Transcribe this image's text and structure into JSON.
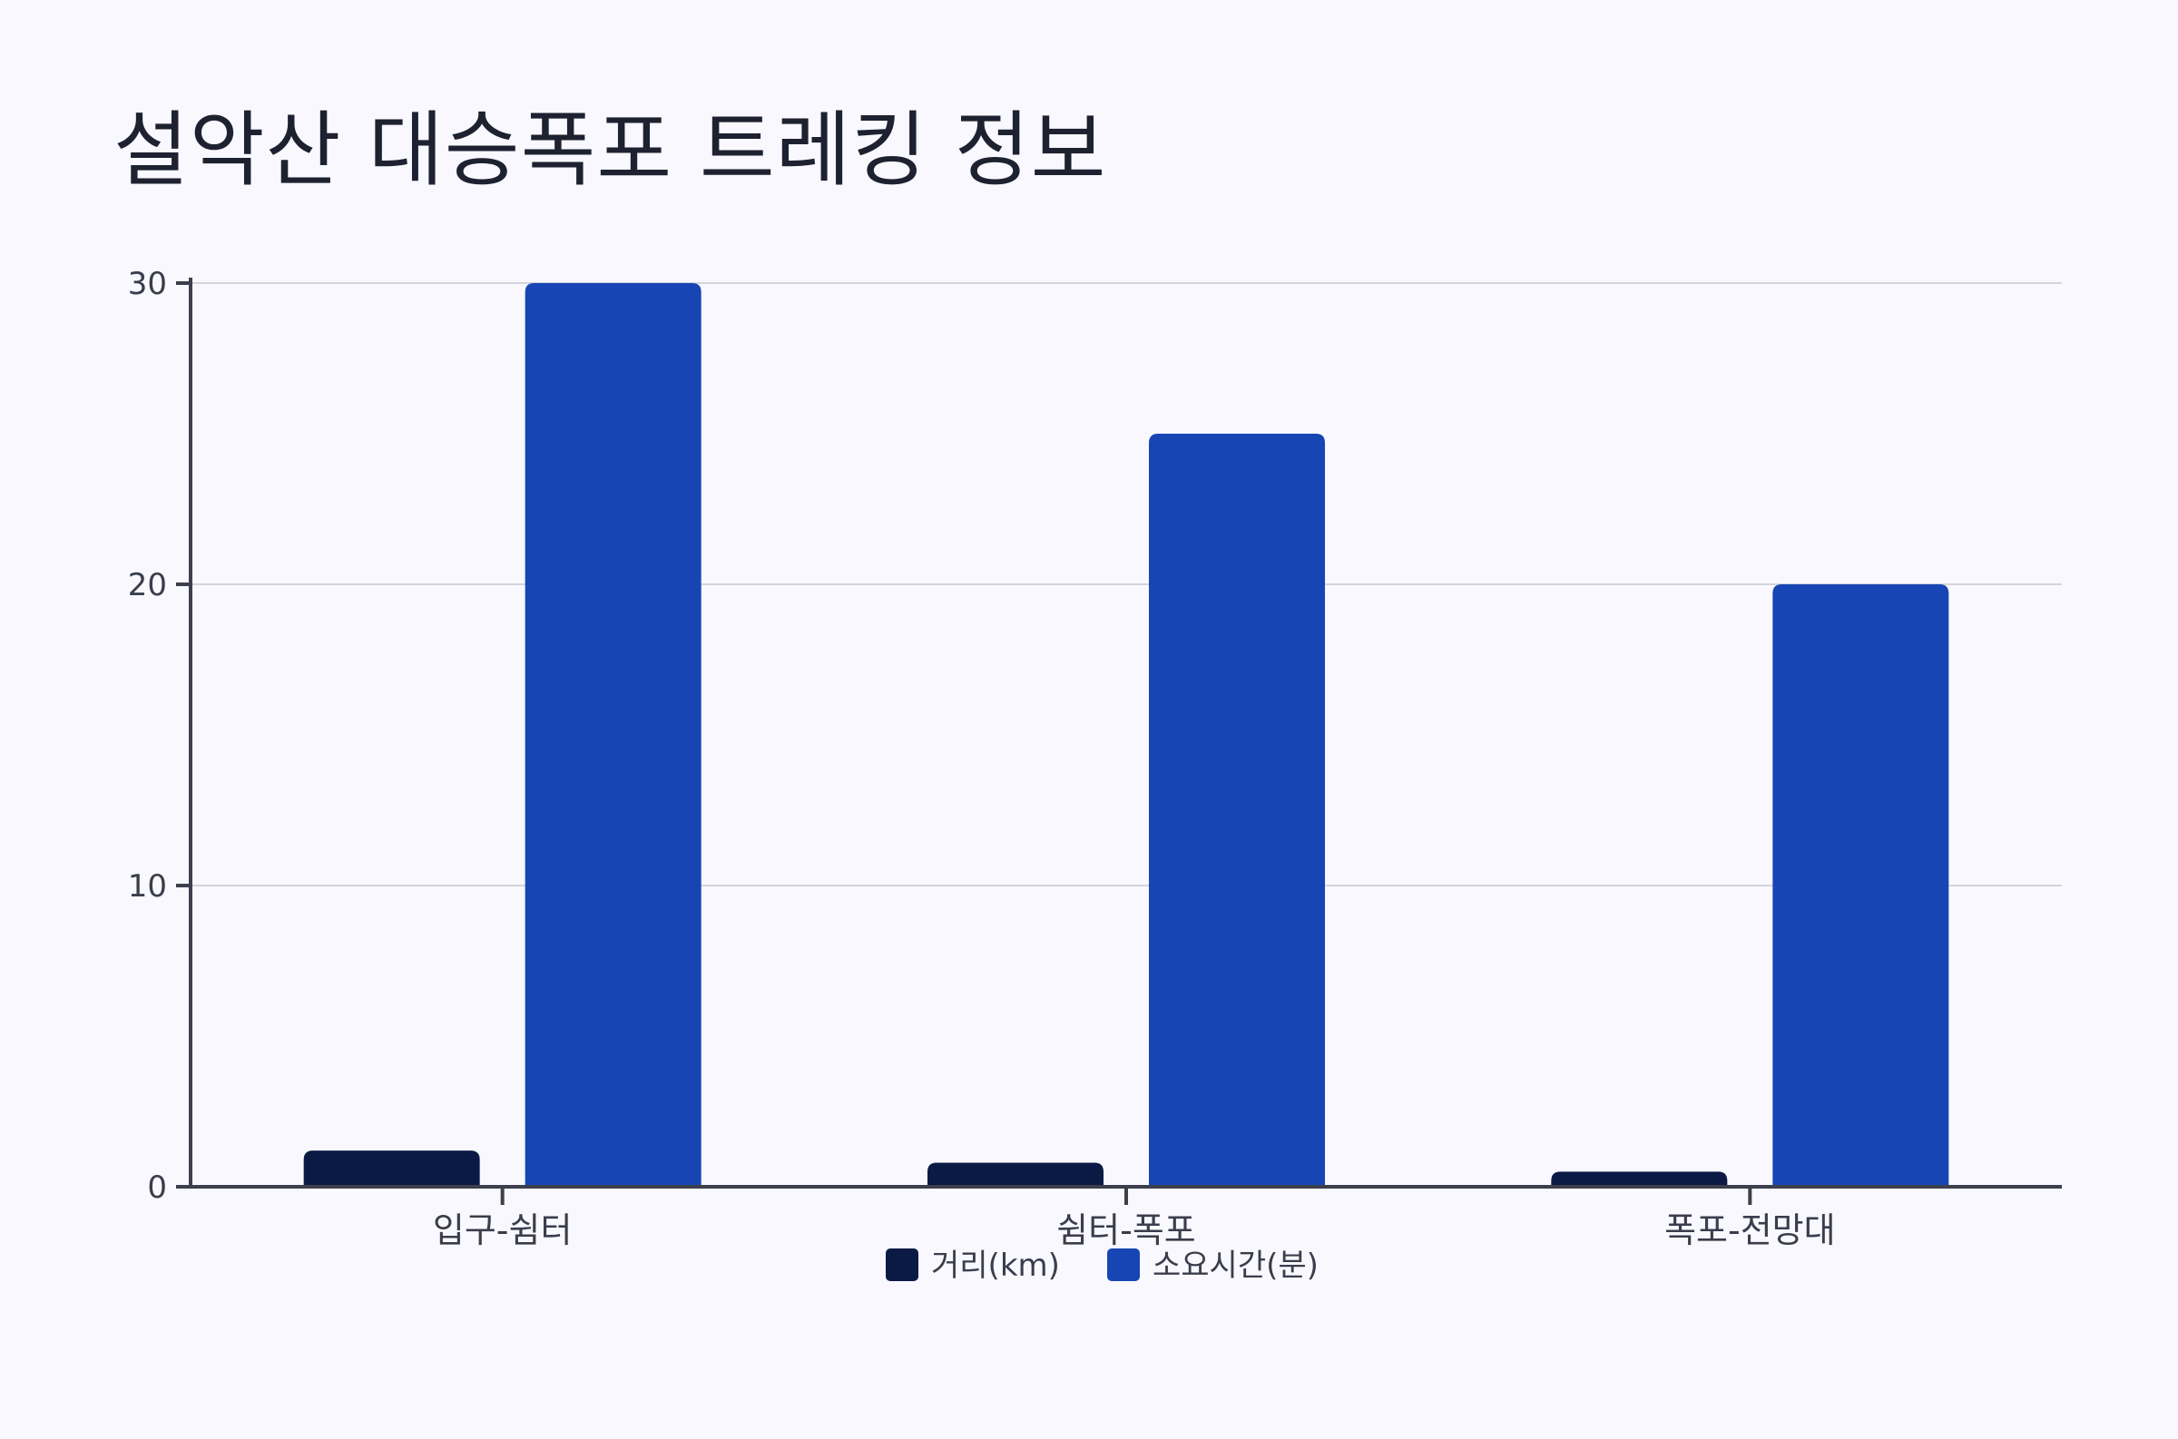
{
  "chart_data": {
    "type": "bar",
    "title": "설악산 대승폭포 트레킹 정보",
    "categories": [
      "입구-쉼터",
      "쉼터-폭포",
      "폭포-전망대"
    ],
    "series": [
      {
        "name": "거리(km)",
        "values": [
          1.2,
          0.8,
          0.5
        ],
        "color": "#0b1a45"
      },
      {
        "name": "소요시간(분)",
        "values": [
          30,
          25,
          20
        ],
        "color": "#1746b4"
      }
    ],
    "ylim": [
      0,
      30
    ],
    "yticks": [
      "0",
      "10",
      "20",
      "30"
    ],
    "grid": true,
    "legend": "bottom-center"
  }
}
